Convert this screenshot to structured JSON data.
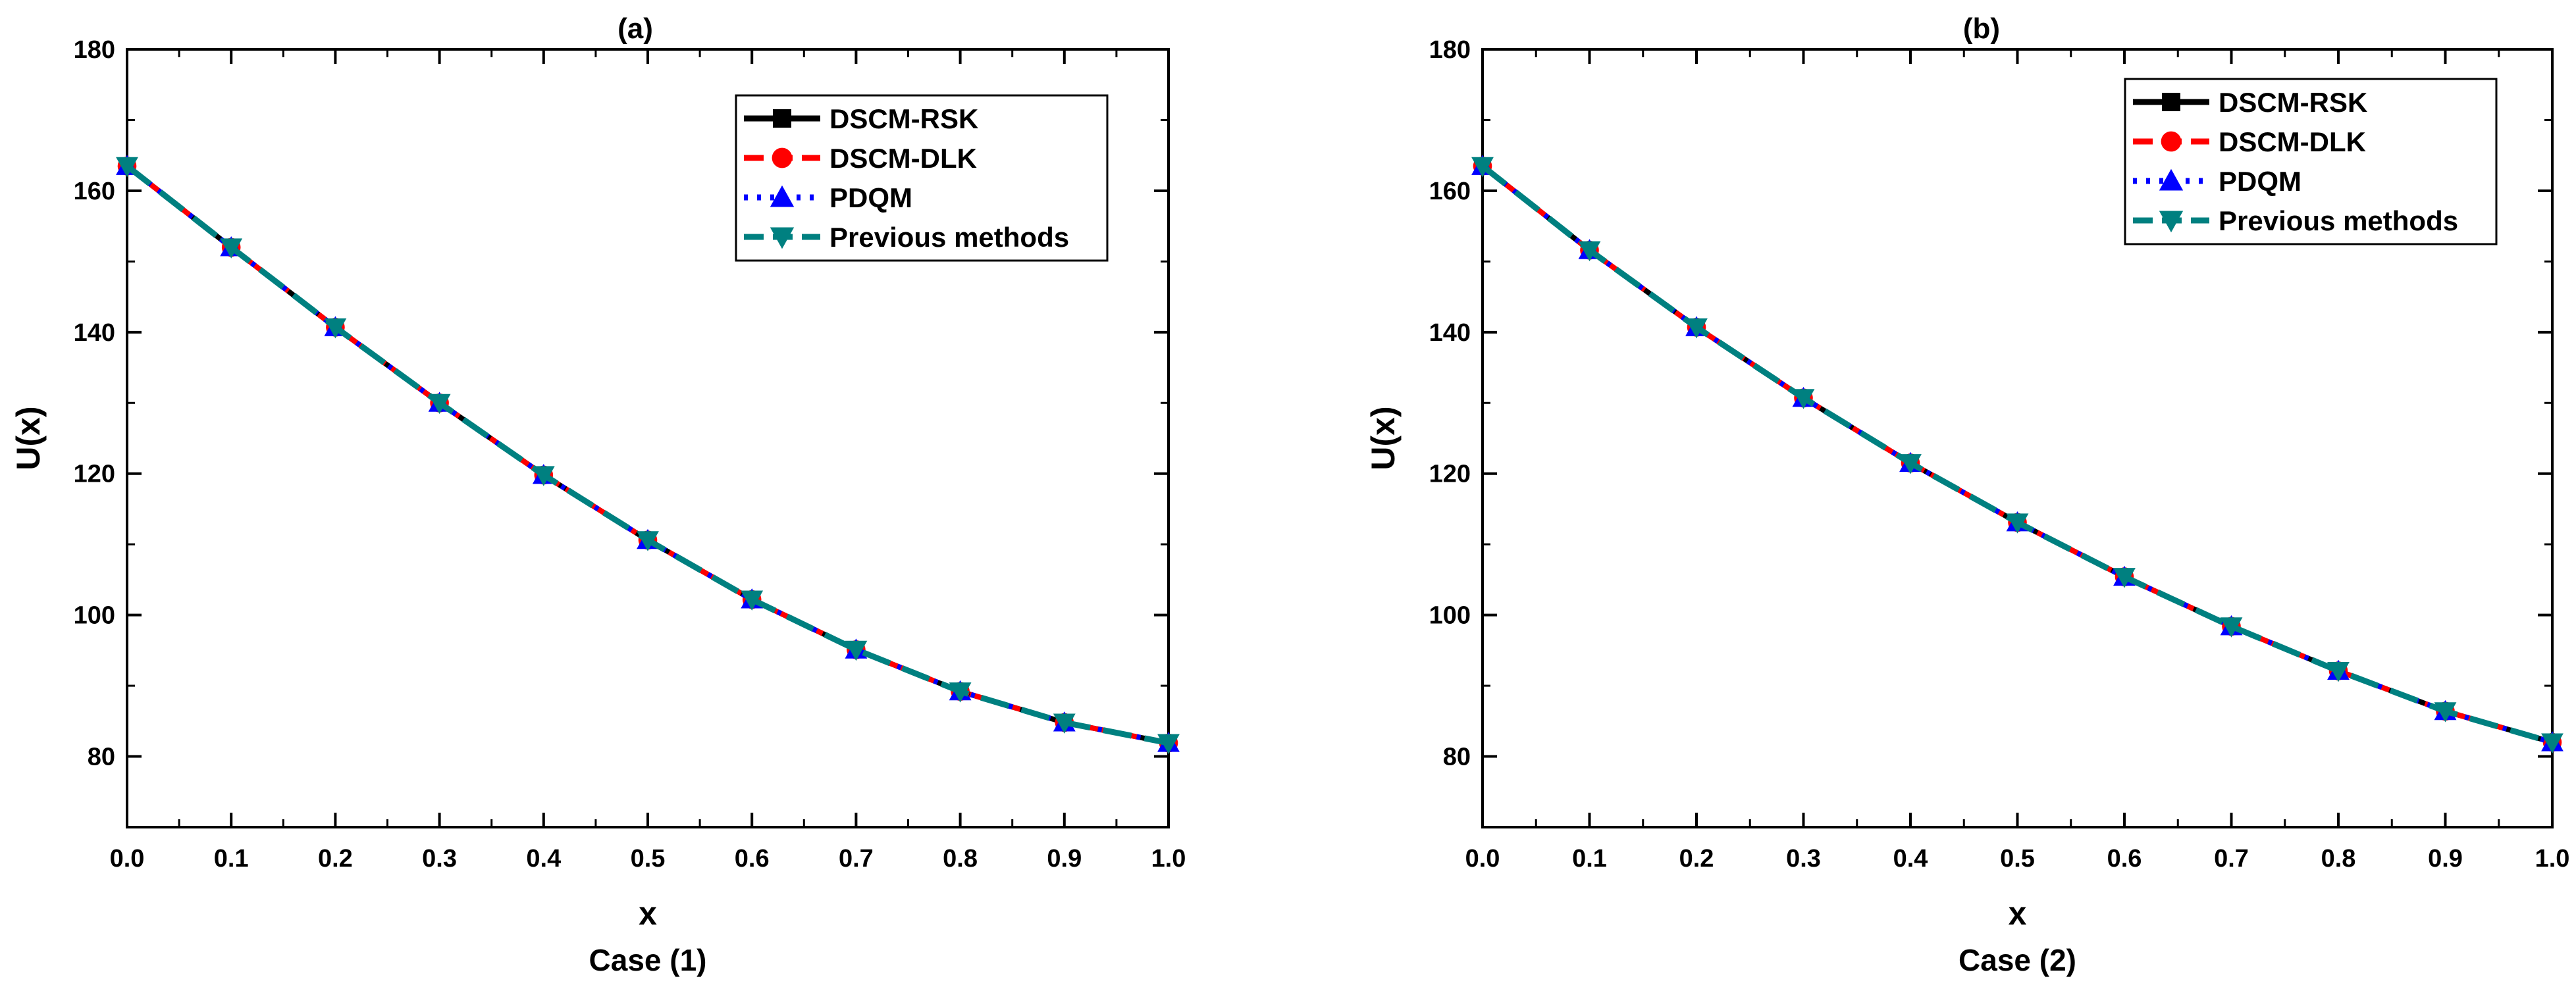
{
  "colors": {
    "rsk": "#000000",
    "dlk": "#ff0000",
    "pdqm": "#0000ff",
    "previous": "#008080"
  },
  "chart_data": [
    {
      "type": "line",
      "title": "(a)",
      "caption": "Case (1)",
      "xlabel": "x",
      "ylabel": "U(x)",
      "xlim": [
        0.0,
        1.0
      ],
      "ylim": [
        70,
        180
      ],
      "x_ticks": [
        "0.0",
        "0.1",
        "0.2",
        "0.3",
        "0.4",
        "0.5",
        "0.6",
        "0.7",
        "0.8",
        "0.9",
        "1.0"
      ],
      "y_ticks": [
        "80",
        "100",
        "120",
        "140",
        "160",
        "180"
      ],
      "x": [
        0.0,
        0.1,
        0.2,
        0.3,
        0.4,
        0.5,
        0.6,
        0.7,
        0.8,
        0.9,
        1.0
      ],
      "legend_position": "top-right",
      "series": [
        {
          "name": "DSCM-RSK",
          "marker": "square",
          "values": [
            163.5,
            152.0,
            140.7,
            130.0,
            119.8,
            110.6,
            102.2,
            95.1,
            89.2,
            84.8,
            81.9
          ]
        },
        {
          "name": "DSCM-DLK",
          "marker": "circle",
          "values": [
            163.5,
            152.0,
            140.7,
            130.0,
            119.8,
            110.6,
            102.2,
            95.1,
            89.2,
            84.8,
            81.9
          ]
        },
        {
          "name": "PDQM",
          "marker": "triangle-up",
          "values": [
            163.5,
            152.0,
            140.7,
            130.0,
            119.8,
            110.6,
            102.2,
            95.1,
            89.2,
            84.8,
            81.9
          ]
        },
        {
          "name": "Previous methods",
          "marker": "triangle-down",
          "values": [
            163.5,
            152.0,
            140.7,
            130.0,
            119.8,
            110.6,
            102.2,
            95.1,
            89.2,
            84.8,
            81.9
          ]
        }
      ]
    },
    {
      "type": "line",
      "title": "(b)",
      "caption": "Case (2)",
      "xlabel": "x",
      "ylabel": "U(x)",
      "xlim": [
        0.0,
        1.0
      ],
      "ylim": [
        70,
        180
      ],
      "x_ticks": [
        "0.0",
        "0.1",
        "0.2",
        "0.3",
        "0.4",
        "0.5",
        "0.6",
        "0.7",
        "0.8",
        "0.9",
        "1.0"
      ],
      "y_ticks": [
        "80",
        "100",
        "120",
        "140",
        "160",
        "180"
      ],
      "x": [
        0.0,
        0.1,
        0.2,
        0.3,
        0.4,
        0.5,
        0.6,
        0.7,
        0.8,
        0.9,
        1.0
      ],
      "legend_position": "top-right",
      "series": [
        {
          "name": "DSCM-RSK",
          "marker": "square",
          "values": [
            163.5,
            151.6,
            140.7,
            130.7,
            121.5,
            113.1,
            105.4,
            98.4,
            92.1,
            86.4,
            82.0
          ]
        },
        {
          "name": "DSCM-DLK",
          "marker": "circle",
          "values": [
            163.5,
            151.6,
            140.7,
            130.7,
            121.5,
            113.1,
            105.4,
            98.4,
            92.1,
            86.4,
            82.0
          ]
        },
        {
          "name": "PDQM",
          "marker": "triangle-up",
          "values": [
            163.5,
            151.6,
            140.7,
            130.7,
            121.5,
            113.1,
            105.4,
            98.4,
            92.1,
            86.4,
            82.0
          ]
        },
        {
          "name": "Previous methods",
          "marker": "triangle-down",
          "values": [
            163.5,
            151.6,
            140.7,
            130.7,
            121.5,
            113.1,
            105.4,
            98.4,
            92.1,
            86.4,
            82.0
          ]
        }
      ]
    }
  ]
}
